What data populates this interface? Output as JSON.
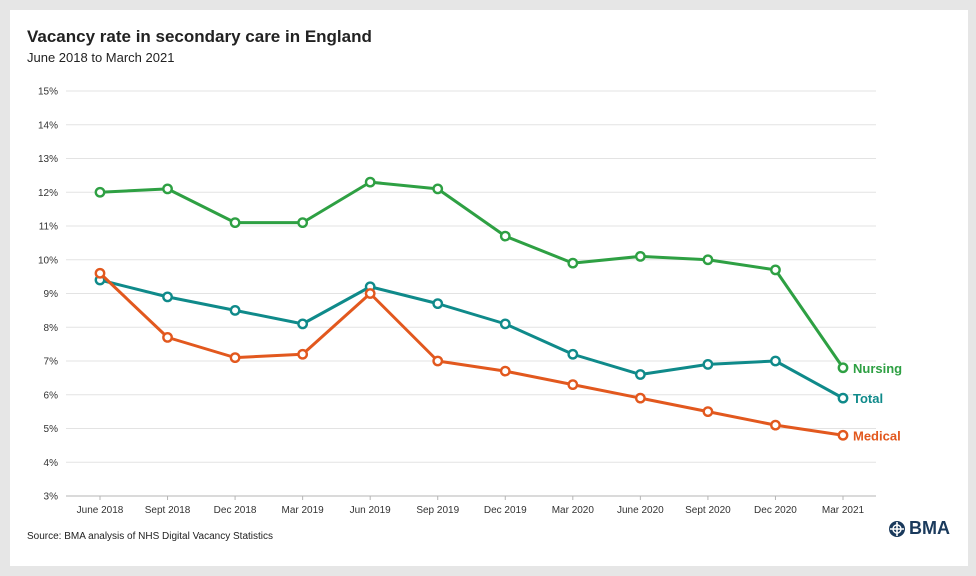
{
  "title": "Vacancy rate in secondary care in England",
  "subtitle": "June 2018 to March 2021",
  "source": "Source: BMA analysis of NHS Digital Vacancy Statistics",
  "logo_text": "BMA",
  "logo_icon": "bma-crest-icon",
  "chart_data": {
    "type": "line",
    "categories": [
      "June 2018",
      "Sept 2018",
      "Dec 2018",
      "Mar 2019",
      "Jun 2019",
      "Sep 2019",
      "Dec 2019",
      "Mar 2020",
      "June 2020",
      "Sept 2020",
      "Dec 2020",
      "Mar 2021"
    ],
    "y_ticks": [
      "3%",
      "4%",
      "5%",
      "6%",
      "7%",
      "8%",
      "9%",
      "10%",
      "11%",
      "12%",
      "13%",
      "14%",
      "15%"
    ],
    "ylim": [
      3,
      15
    ],
    "grid": true,
    "legend": "end-of-line labels",
    "series": [
      {
        "name": "Nursing",
        "color": "#2ea043",
        "values": [
          12.0,
          12.1,
          11.1,
          11.1,
          12.3,
          12.1,
          10.7,
          9.9,
          10.1,
          10.0,
          9.7,
          6.8
        ]
      },
      {
        "name": "Total",
        "color": "#0f8a8a",
        "values": [
          9.4,
          8.9,
          8.5,
          8.1,
          9.2,
          8.7,
          8.1,
          7.2,
          6.6,
          6.9,
          7.0,
          5.9
        ]
      },
      {
        "name": "Medical",
        "color": "#e2581e",
        "values": [
          9.6,
          7.7,
          7.1,
          7.2,
          9.0,
          7.0,
          6.7,
          6.3,
          5.9,
          5.5,
          5.1,
          4.8
        ]
      }
    ]
  }
}
